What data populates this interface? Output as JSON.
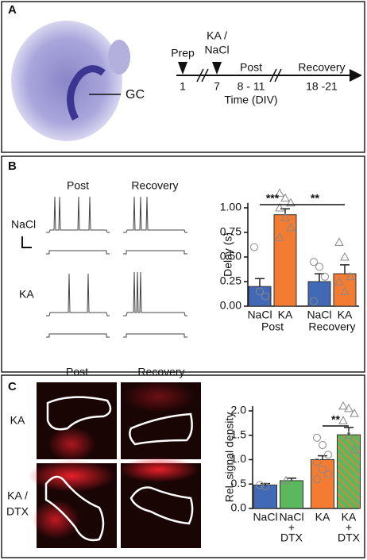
{
  "panel_a": {
    "label": "A",
    "gc": "GC",
    "prep": "Prep",
    "ka_line1": "KA /",
    "ka_line2": "NaCl",
    "post": "Post",
    "recovery": "Recovery",
    "days": [
      "1",
      "7",
      "8 - 11",
      "18 -21"
    ],
    "axis": "Time (DIV)"
  },
  "panel_b": {
    "label": "B",
    "columns": [
      "Post",
      "Recovery"
    ],
    "rows": [
      "NaCl",
      "KA"
    ]
  },
  "panel_c": {
    "label": "C",
    "columns": [
      "Post",
      "Recovery"
    ],
    "rows": [
      [
        "KA"
      ],
      [
        "KA /",
        "DTX"
      ]
    ]
  },
  "chart_data": [
    {
      "type": "bar",
      "y_label": "Delay (s)",
      "categories": [
        "NaCl",
        "KA",
        "NaCl",
        "KA"
      ],
      "groups": [
        "Post",
        "Recovery"
      ],
      "values": [
        0.2,
        0.93,
        0.25,
        0.33
      ],
      "errors": [
        0.08,
        0.06,
        0.08,
        0.09
      ],
      "colors": [
        "#4169b5",
        "#f37c32",
        "#4169b5",
        "#f37c32"
      ],
      "markers": [
        "circle",
        "triangle",
        "circle",
        "triangle"
      ],
      "points": [
        [
          0.6,
          0.15,
          0.1
        ],
        [
          1.15,
          1.1,
          1.05,
          1.0,
          0.9,
          0.8,
          0.7
        ],
        [
          0.45,
          0.4,
          0.3,
          0.05
        ],
        [
          0.65,
          0.5,
          0.3,
          0.25,
          0.15
        ]
      ],
      "ylim": [
        0,
        1.05
      ],
      "yticks": [
        {
          "value": 0,
          "label": "0.00"
        },
        {
          "value": 0.25,
          "label": "0.25"
        },
        {
          "value": 0.5,
          "label": "0.50"
        },
        {
          "value": 0.75,
          "label": "0.75"
        },
        {
          "value": 1,
          "label": "1.00"
        }
      ],
      "significance": [
        "***",
        "**"
      ]
    },
    {
      "type": "bar",
      "y_label": "Rel. signal density",
      "categories": [
        [
          "NaCl"
        ],
        [
          "NaCl",
          "+",
          "DTX"
        ],
        [
          "KA"
        ],
        [
          "KA",
          "+",
          "DTX"
        ]
      ],
      "values": [
        0.48,
        0.57,
        1.0,
        1.51
      ],
      "errors": [
        0.03,
        0.05,
        0.08,
        0.15
      ],
      "colors": [
        "#4169b5",
        "#5cb85c",
        "#f37c32",
        "#5cb85c"
      ],
      "hatched": [
        false,
        false,
        false,
        true
      ],
      "hatch_color": "#f37c32",
      "markers": [
        "circle",
        "triangle",
        "circle",
        "triangle"
      ],
      "points": [
        [
          0.48,
          0.45
        ],
        [
          0.57
        ],
        [
          1.45,
          1.3,
          1.1,
          0.95,
          0.8,
          0.7,
          0.6
        ],
        [
          2.1,
          2.05,
          1.95,
          1.8,
          1.5,
          1.2
        ]
      ],
      "ylim": [
        0,
        2.1
      ],
      "yticks": [
        {
          "value": 0,
          "label": "0.0"
        },
        {
          "value": 0.5,
          "label": "0.5"
        },
        {
          "value": 1,
          "label": "1.0"
        },
        {
          "value": 1.5,
          "label": "1.5"
        },
        {
          "value": 2,
          "label": "2.0"
        }
      ],
      "significance": [
        "**"
      ]
    }
  ]
}
